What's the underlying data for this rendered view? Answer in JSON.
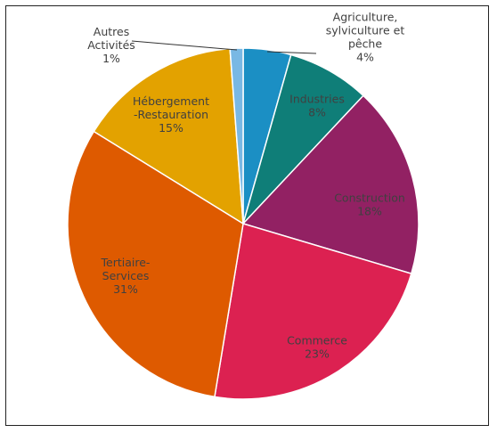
{
  "chart_data": {
    "type": "pie",
    "title": "",
    "slices": [
      {
        "label_lines": [
          "Agriculture,",
          "sylviculture et",
          "pêche"
        ],
        "pct_text": "4%",
        "value": 4.4,
        "color": "#1b8fc4",
        "label_color": "#404040"
      },
      {
        "label_lines": [
          "Industries"
        ],
        "pct_text": "8%",
        "value": 7.6,
        "color": "#0f7e78",
        "label_color": "#404040"
      },
      {
        "label_lines": [
          "Construction"
        ],
        "pct_text": "18%",
        "value": 17.6,
        "color": "#922163",
        "label_color": "#404040"
      },
      {
        "label_lines": [
          "Commerce"
        ],
        "pct_text": "23%",
        "value": 23.0,
        "color": "#dc2151",
        "label_color": "#404040"
      },
      {
        "label_lines": [
          "Tertiaire-",
          "Services"
        ],
        "pct_text": "31%",
        "value": 31.2,
        "color": "#de5a00",
        "label_color": "#404040"
      },
      {
        "label_lines": [
          "Hébergement",
          "-Restauration"
        ],
        "pct_text": "15%",
        "value": 15.0,
        "color": "#e3a200",
        "label_color": "#404040"
      },
      {
        "label_lines": [
          "Autres",
          "Activités"
        ],
        "pct_text": "1%",
        "value": 1.2,
        "color": "#79b8e4",
        "label_color": "#404040"
      }
    ]
  }
}
